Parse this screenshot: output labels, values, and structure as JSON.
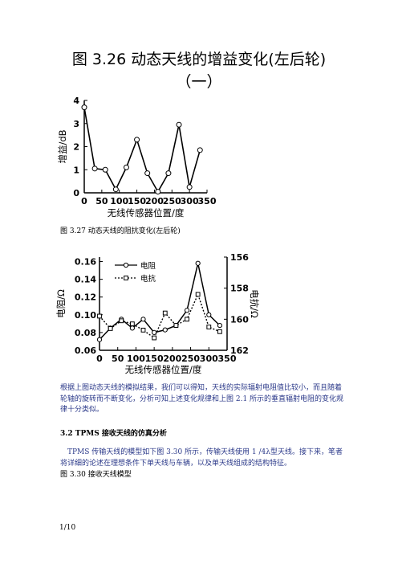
{
  "title_line1": "图 3.26 动态天线的增益变化(左后轮)",
  "title_line2": "（一）",
  "caption_327": "图 3.27 动态天线的阻抗变化(左后轮)",
  "paragraph1": "根据上图动态天线的模拟结果，我们可以得知，天线的实际辐射电阻值比较小，而且随着轮轴的旋转而不断变化，分析可知上述变化规律和上图 2.1 所示的垂直辐射电阻的变化规律十分类似。",
  "section_heading": "3.2 TPMS 接收天线的仿真分析",
  "paragraph2": "TPMS 传输天线的模型如下图 3.30 所示，传输天线使用 1 /4λ型天线。接下来，笔者将详细的论述在理想条件下单天线与车辆，以及单天线组成的结构特征。",
  "caption_330": "图 3.30 接收天线模型",
  "page_number": "1/10",
  "chart_data": [
    {
      "type": "line",
      "x": [
        0,
        30,
        60,
        90,
        120,
        150,
        180,
        210,
        240,
        270,
        300,
        330
      ],
      "series": [
        {
          "values": [
            3.7,
            1.05,
            1.0,
            0.15,
            1.1,
            2.3,
            0.85,
            0.05,
            0.85,
            2.95,
            0.25,
            1.85
          ]
        }
      ],
      "xlabel": "无线传感器位置/度",
      "ylabel": "增益/dB",
      "xticks": [
        0,
        50,
        100,
        150,
        200,
        250,
        300,
        350
      ],
      "yticks": [
        0,
        1,
        2,
        3,
        4
      ],
      "xlim": [
        0,
        350
      ],
      "ylim": [
        0,
        4
      ],
      "marker": "open-circle",
      "grid": false
    },
    {
      "type": "line",
      "x": [
        0,
        30,
        60,
        90,
        120,
        150,
        180,
        210,
        240,
        270,
        300,
        330
      ],
      "series": [
        {
          "name": "电阻",
          "axis": "left",
          "style": "solid",
          "marker": "open-circle",
          "values": [
            0.072,
            0.085,
            0.095,
            0.085,
            0.095,
            0.08,
            0.083,
            0.088,
            0.105,
            0.158,
            0.1,
            0.088
          ]
        },
        {
          "name": "电抗",
          "axis": "right",
          "style": "dotted",
          "marker": "open-square",
          "values": [
            159.8,
            160.6,
            160.1,
            160.3,
            160.7,
            161.2,
            159.6,
            160.4,
            160.0,
            158.4,
            160.5,
            160.8
          ]
        }
      ],
      "xlabel": "无线传感器位置/度",
      "ylabel": "电阻/Ω",
      "ylabel_right": "电抗/Ω",
      "xticks": [
        0,
        50,
        100,
        150,
        200,
        250,
        300,
        350
      ],
      "yticks": [
        0.06,
        0.08,
        0.1,
        0.12,
        0.14,
        0.16
      ],
      "ytick_labels": [
        "0.06",
        "0.08",
        "0.10",
        "0.12",
        "0.14",
        "0.16"
      ],
      "yticks_right": [
        156,
        158,
        160,
        162
      ],
      "xlim": [
        0,
        350
      ],
      "ylim": [
        0.06,
        0.165
      ],
      "ylim_right": [
        162,
        156
      ],
      "legend": "top-left",
      "grid": false
    }
  ]
}
